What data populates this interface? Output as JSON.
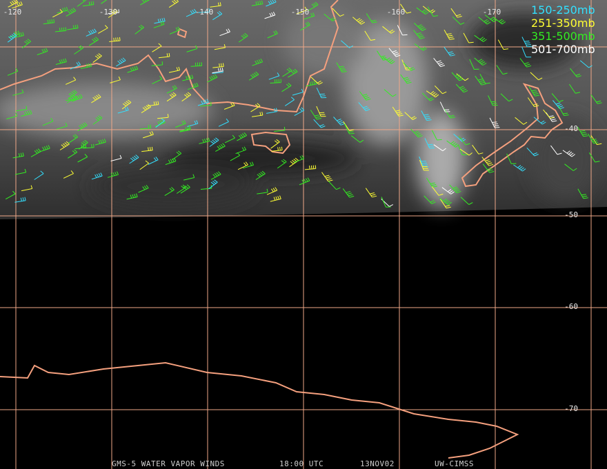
{
  "map": {
    "longitude_labels": [
      "-120",
      "-130",
      "-140",
      "-150",
      "-160",
      "-170"
    ],
    "latitude_labels": [
      "-40",
      "-50",
      "-60",
      "-70"
    ],
    "legend": [
      {
        "label": "150-250mb",
        "color": "#33e0ff"
      },
      {
        "label": "251-350mb",
        "color": "#ffff33"
      },
      {
        "label": "351-500mb",
        "color": "#33ee22"
      },
      {
        "label": "501-700mb",
        "color": "#ffffff"
      }
    ],
    "footer": {
      "product": "GMS-5 WATER VAPOR WINDS",
      "time": "18:00 UTC",
      "date": "13NOV02",
      "source": "UW-CIMSS"
    }
  }
}
